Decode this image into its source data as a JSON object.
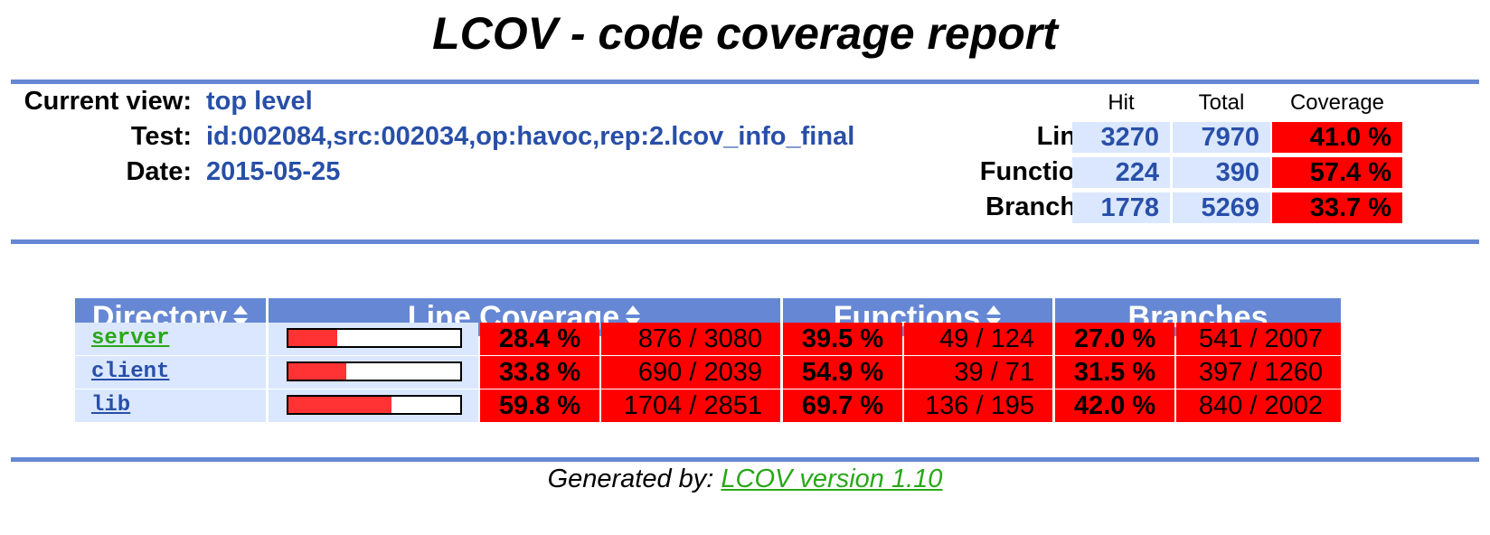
{
  "title": "LCOV - code coverage report",
  "header": {
    "current_view_label": "Current view:",
    "current_view_value": "top level",
    "test_label": "Test:",
    "test_value": "id:002084,src:002034,op:havoc,rep:2.lcov_info_final",
    "date_label": "Date:",
    "date_value": "2015-05-25"
  },
  "summary": {
    "col_hit": "Hit",
    "col_total": "Total",
    "col_coverage": "Coverage",
    "rows": [
      {
        "label": "Lines:",
        "hit": "3270",
        "total": "7970",
        "coverage": "41.0 %"
      },
      {
        "label": "Functions:",
        "hit": "224",
        "total": "390",
        "coverage": "57.4 %"
      },
      {
        "label": "Branches:",
        "hit": "1778",
        "total": "5269",
        "coverage": "33.7 %"
      }
    ]
  },
  "table": {
    "headers": {
      "directory": "Directory",
      "line_coverage": "Line Coverage",
      "functions": "Functions",
      "branches": "Branches"
    },
    "rows": [
      {
        "name": "server",
        "bar_fraction": 0.284,
        "line_pct": "28.4 %",
        "line_frac": "876 / 3080",
        "func_pct": "39.5 %",
        "func_frac": "49 / 124",
        "branch_pct": "27.0 %",
        "branch_frac": "541 / 2007"
      },
      {
        "name": "client",
        "bar_fraction": 0.338,
        "line_pct": "33.8 %",
        "line_frac": "690 / 2039",
        "func_pct": "54.9 %",
        "func_frac": "39 / 71",
        "branch_pct": "31.5 %",
        "branch_frac": "397 / 1260"
      },
      {
        "name": "lib",
        "bar_fraction": 0.598,
        "line_pct": "59.8 %",
        "line_frac": "1704 / 2851",
        "func_pct": "69.7 %",
        "func_frac": "136 / 195",
        "branch_pct": "42.0 %",
        "branch_frac": "840 / 2002"
      }
    ]
  },
  "footer": {
    "prefix": "Generated by: ",
    "link_text": "LCOV version 1.10"
  },
  "colors": {
    "ruler": "#6688d4",
    "header_value": "#284fa8",
    "cell_bg": "#dae7fe",
    "coverage_low": "#ff0000",
    "link_visited": "#28a818"
  }
}
